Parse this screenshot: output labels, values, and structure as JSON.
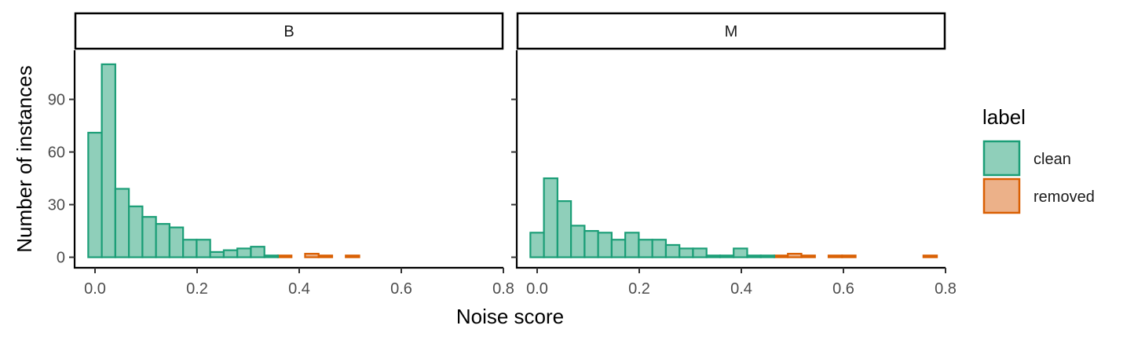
{
  "chart_data": {
    "type": "histogram",
    "xlabel": "Noise score",
    "ylabel": "Number of instances",
    "xlim": [
      -0.04,
      0.8
    ],
    "ylim": [
      -6,
      118
    ],
    "xticks": [
      0.0,
      0.2,
      0.4,
      0.6,
      0.8
    ],
    "xtick_labels": [
      "0.0",
      "0.2",
      "0.4",
      "0.6",
      "0.8"
    ],
    "yticks": [
      0,
      30,
      60,
      90
    ],
    "ytick_labels": [
      "0",
      "30",
      "60",
      "90"
    ],
    "bin_width": 0.02655,
    "bin_start": -0.0133,
    "bins": 30,
    "grid": false,
    "legend_position": "right",
    "legend": {
      "title": "label",
      "items": [
        {
          "name": "clean",
          "fill": "#8fcfba",
          "stroke": "#1b9e77"
        },
        {
          "name": "removed",
          "fill": "#ecb189",
          "stroke": "#d95f02"
        }
      ]
    },
    "facets": [
      {
        "name": "B",
        "series": [
          {
            "name": "clean",
            "values": [
              71,
              110,
              39,
              29,
              23,
              19,
              17,
              10,
              10,
              3,
              4,
              5,
              6,
              1,
              0,
              0,
              0,
              0,
              0,
              0,
              0,
              0,
              0,
              0,
              0,
              0,
              0,
              0,
              0,
              0
            ]
          },
          {
            "name": "removed",
            "values": [
              0,
              0,
              0,
              0,
              0,
              0,
              0,
              0,
              0,
              0,
              0,
              0,
              0,
              0,
              1,
              0,
              2,
              1,
              0,
              1,
              0,
              0,
              0,
              0,
              0,
              0,
              0,
              0,
              0,
              0
            ]
          }
        ]
      },
      {
        "name": "M",
        "series": [
          {
            "name": "clean",
            "values": [
              14,
              45,
              32,
              18,
              15,
              14,
              10,
              14,
              10,
              10,
              7,
              5,
              5,
              1,
              1,
              5,
              1,
              1,
              0,
              0,
              0,
              0,
              0,
              0,
              0,
              0,
              0,
              0,
              0,
              0
            ]
          },
          {
            "name": "removed",
            "values": [
              0,
              0,
              0,
              0,
              0,
              0,
              0,
              0,
              0,
              0,
              0,
              0,
              0,
              0,
              0,
              0,
              0,
              0,
              1,
              2,
              1,
              0,
              1,
              1,
              0,
              0,
              0,
              0,
              0,
              1
            ]
          }
        ]
      }
    ]
  }
}
